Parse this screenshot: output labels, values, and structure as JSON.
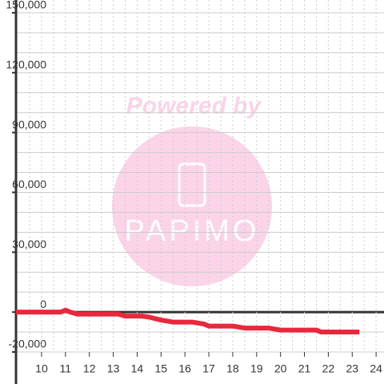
{
  "chart_data": {
    "type": "line",
    "watermark": {
      "text": "Powered by",
      "logo": "PAPIMO"
    },
    "x": [
      8.93,
      10.8,
      11.0,
      11.2,
      11.5,
      13.2,
      13.5,
      14.2,
      14.5,
      15.0,
      15.5,
      16.3,
      16.8,
      17.0,
      18.0,
      18.5,
      19.5,
      20.0,
      21.5,
      21.7,
      23.3
    ],
    "series": [
      {
        "color": "#e8283c",
        "values": [
          0,
          0,
          1000,
          0,
          -1000,
          -1000,
          -2000,
          -2000,
          -2500,
          -4000,
          -5000,
          -5000,
          -6000,
          -7000,
          -7000,
          -8000,
          -8000,
          -9000,
          -9000,
          -10000,
          -10000
        ]
      }
    ],
    "xlim": [
      8.93,
      24.33
    ],
    "xticks": [
      10,
      11,
      12,
      13,
      14,
      15,
      16,
      17,
      18,
      19,
      20,
      21,
      22,
      23,
      24
    ],
    "x_minor_ticks": [
      9.5,
      10.5,
      11.5,
      12.5,
      13.5,
      14.5,
      15.5,
      16.5,
      17.5,
      18.5,
      19.5,
      20.5,
      21.5,
      22.5,
      23.5
    ],
    "ylim": [
      -20000,
      150000
    ],
    "yticks": [
      {
        "value": -20000,
        "label": "-20,000"
      },
      0,
      {
        "value": 30000,
        "label": "30,000"
      },
      {
        "value": 60000,
        "label": "60,000"
      },
      {
        "value": 90000,
        "label": "90,000"
      },
      {
        "value": 120000,
        "label": "120,000"
      },
      {
        "value": 150000,
        "label": "150,000"
      }
    ],
    "y_minor_ticks": [
      -10000,
      10000,
      20000,
      40000,
      50000,
      70000,
      80000,
      100000,
      110000,
      130000,
      140000
    ],
    "grid": true
  }
}
